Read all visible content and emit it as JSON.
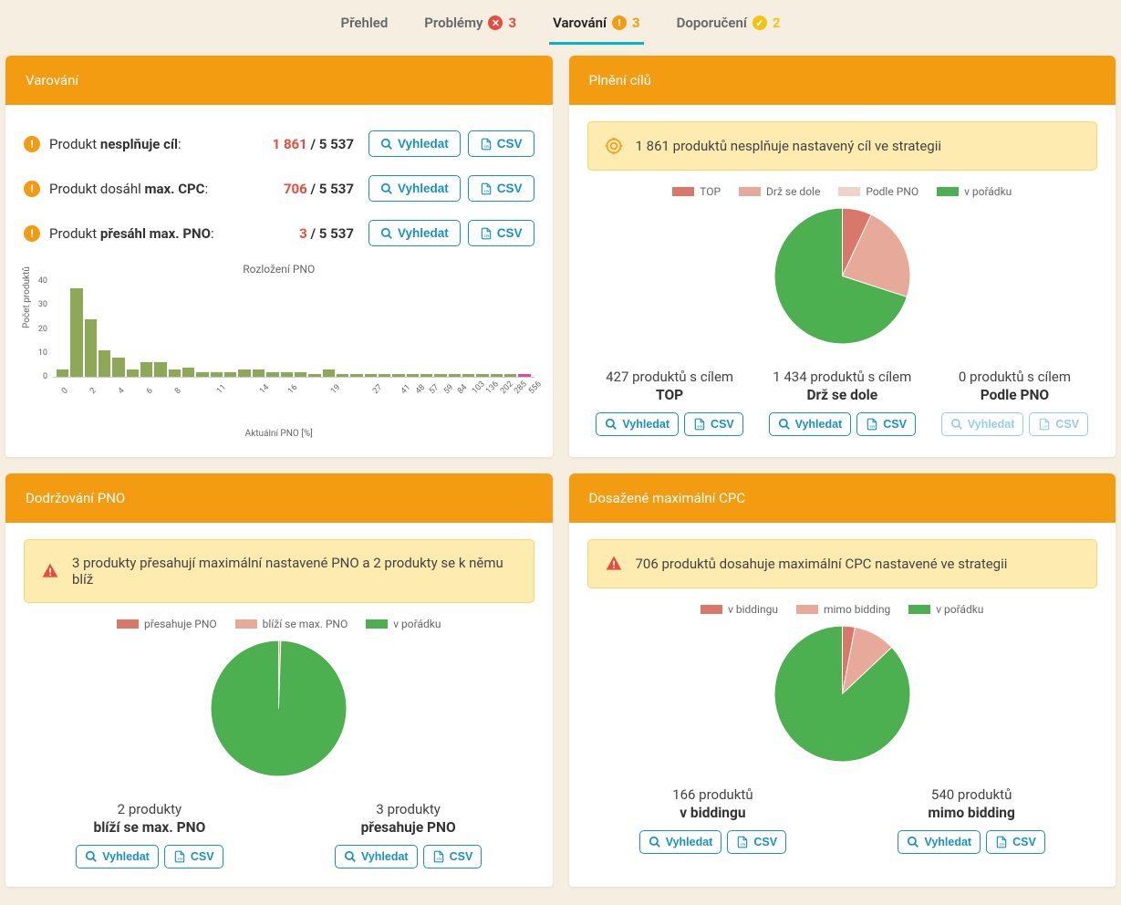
{
  "tabs": [
    {
      "label": "Přehled",
      "badge": null,
      "active": false
    },
    {
      "label": "Problémy",
      "badge": {
        "count": 3,
        "color": "#e74c3c",
        "symbol": "✕"
      },
      "active": false
    },
    {
      "label": "Varování",
      "badge": {
        "count": 3,
        "color": "#f39c12",
        "symbol": "!"
      },
      "active": true
    },
    {
      "label": "Doporučení",
      "badge": {
        "count": 2,
        "color": "#f1c40f",
        "symbol": "✓"
      },
      "active": false
    }
  ],
  "buttons": {
    "search": "Vyhledat",
    "csv": "CSV"
  },
  "warnings_card": {
    "title": "Varování",
    "rows": [
      {
        "label_pre": "Produkt ",
        "label_bold": "nesplňuje cíl",
        "label_post": ":",
        "num": "1 861",
        "denom": "5 537"
      },
      {
        "label_pre": "Produkt dosáhl ",
        "label_bold": "max. CPC",
        "label_post": ":",
        "num": "706",
        "denom": "5 537"
      },
      {
        "label_pre": "Produkt ",
        "label_bold": "přesáhl max. PNO",
        "label_post": ":",
        "num": "3",
        "denom": "5 537"
      }
    ],
    "bar_chart": {
      "title": "Rozložení PNO",
      "ylabel": "Počet produktů",
      "xlabel": "Aktuální PNO [%]",
      "ymax": 40,
      "yticks": [
        0,
        10,
        20,
        30,
        40
      ],
      "x_categories": [
        "0",
        "1",
        "2",
        "3",
        "4",
        "5",
        "6",
        "7",
        "8",
        "9",
        "10",
        "11",
        "12",
        "13",
        "14",
        "15",
        "16",
        "17",
        "18",
        "19",
        "20",
        "21",
        "27",
        "36",
        "41",
        "48",
        "57",
        "59",
        "84",
        "103",
        "136",
        "202",
        "285",
        "556"
      ],
      "x_shown": [
        "0",
        "2",
        "4",
        "6",
        "8",
        "11",
        "14",
        "16",
        "19",
        "27",
        "41",
        "48",
        "57",
        "59",
        "84",
        "103",
        "136",
        "202",
        "285",
        "556"
      ],
      "values": [
        3,
        37,
        24,
        11,
        8,
        3,
        6,
        6,
        3,
        4,
        2,
        2,
        2,
        3,
        3,
        2,
        2,
        2,
        1,
        3,
        1,
        1,
        1,
        1,
        1,
        1,
        1,
        1,
        1,
        1,
        1,
        1,
        1,
        1
      ],
      "bar_color": "#8da856",
      "last_bar_color": "#d94f9c"
    }
  },
  "goals_card": {
    "title": "Plnění cílů",
    "alert": "1 861 produktů nesplňuje nastavený cíl ve strategii",
    "legend": [
      {
        "label": "TOP",
        "color": "#d9776b"
      },
      {
        "label": "Drž se dole",
        "color": "#e7a999"
      },
      {
        "label": "Podle PNO",
        "color": "#efd3c9"
      },
      {
        "label": "v pořádku",
        "color": "#4caf50"
      }
    ],
    "pie": {
      "slices": [
        {
          "color": "#d9776b",
          "value": 7
        },
        {
          "color": "#e7a999",
          "value": 23
        },
        {
          "color": "#4caf50",
          "value": 70
        }
      ]
    },
    "cols": [
      {
        "count": "427 produktů s cílem",
        "name": "TOP",
        "disabled": false
      },
      {
        "count": "1 434 produktů s cílem",
        "name": "Drž se dole",
        "disabled": false
      },
      {
        "count": "0 produktů s cílem",
        "name": "Podle PNO",
        "disabled": true
      }
    ]
  },
  "pno_card": {
    "title": "Dodržování PNO",
    "alert": "3 produkty přesahují maximální nastavené PNO a 2 produkty se k němu blíž",
    "legend": [
      {
        "label": "přesahuje PNO",
        "color": "#d9776b"
      },
      {
        "label": "blíží se max. PNO",
        "color": "#e7a999"
      },
      {
        "label": "v pořádku",
        "color": "#4caf50"
      }
    ],
    "pie": {
      "slices": [
        {
          "color": "#e7a999",
          "value": 0.5
        },
        {
          "color": "#4caf50",
          "value": 99.5
        }
      ]
    },
    "cols": [
      {
        "count": "2 produkty",
        "name": "blíží se max. PNO"
      },
      {
        "count": "3 produkty",
        "name": "přesahuje PNO"
      }
    ]
  },
  "cpc_card": {
    "title": "Dosažené maximální CPC",
    "alert": "706 produktů dosahuje maximální CPC nastavené ve strategii",
    "legend": [
      {
        "label": "v biddingu",
        "color": "#d9776b"
      },
      {
        "label": "mimo bidding",
        "color": "#e7a999"
      },
      {
        "label": "v pořádku",
        "color": "#4caf50"
      }
    ],
    "pie": {
      "slices": [
        {
          "color": "#d9776b",
          "value": 3
        },
        {
          "color": "#e7a999",
          "value": 10
        },
        {
          "color": "#4caf50",
          "value": 87
        }
      ]
    },
    "cols": [
      {
        "count": "166 produktů",
        "name": "v biddingu"
      },
      {
        "count": "540 produktů",
        "name": "mimo bidding"
      }
    ]
  }
}
